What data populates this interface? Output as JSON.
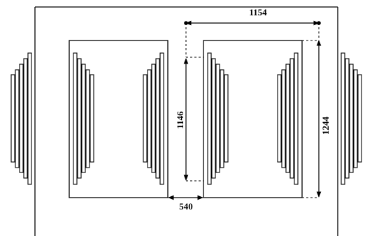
{
  "figure": {
    "stroke_color": "#000000",
    "background": "#ffffff",
    "dimensions": {
      "top_width": "1154",
      "bottom_gap": "540",
      "inner_height": "1146",
      "outer_height": "1244"
    }
  }
}
